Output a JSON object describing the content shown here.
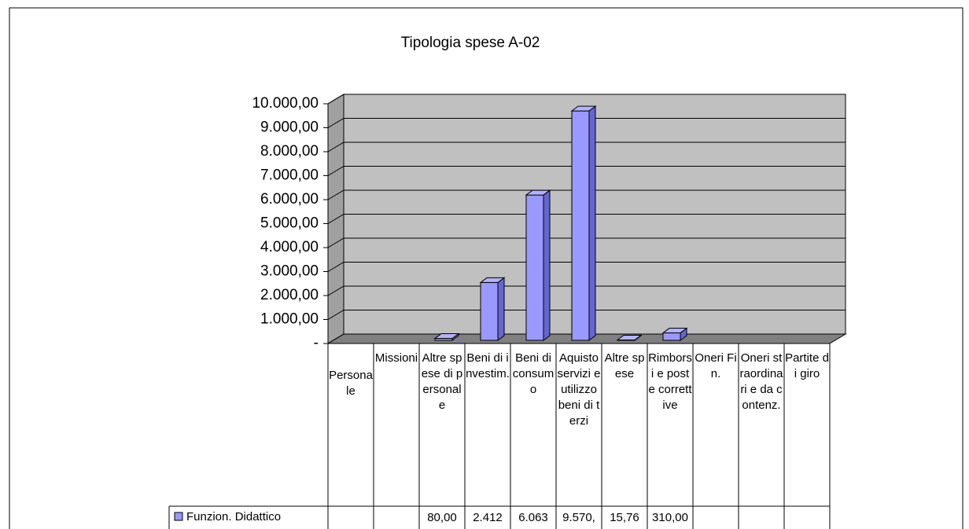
{
  "chart_data": {
    "type": "bar3d",
    "title": "Tipologia spese A-02",
    "categories": [
      "Personale",
      "Missioni",
      "Altre spese di personale",
      "Beni di investim.",
      "Beni di consumo",
      "Aquisto servizi e utilizzo beni di terzi",
      "Altre spese",
      "Rimborsi e poste correttive",
      "Oneri Fin.",
      "Oneri straordinari e da contenz.",
      "Partite di giro"
    ],
    "series": [
      {
        "name": "Funzion. Didattico",
        "color": "#9999ff",
        "values": [
          null,
          null,
          80,
          2412,
          6063,
          9570,
          15.76,
          310,
          null,
          null,
          null
        ],
        "value_labels": [
          null,
          null,
          "80,00",
          "2.412",
          "6.063",
          "9.570,",
          "15,76",
          "310,00",
          null,
          null,
          null
        ]
      }
    ],
    "ylim": [
      0,
      10000
    ],
    "yticks": [
      {
        "value": 0,
        "label": "-"
      },
      {
        "value": 1000,
        "label": "1.000,00"
      },
      {
        "value": 2000,
        "label": "2.000,00"
      },
      {
        "value": 3000,
        "label": "3.000,00"
      },
      {
        "value": 4000,
        "label": "4.000,00"
      },
      {
        "value": 5000,
        "label": "5.000,00"
      },
      {
        "value": 6000,
        "label": "6.000,00"
      },
      {
        "value": 7000,
        "label": "7.000,00"
      },
      {
        "value": 8000,
        "label": "8.000,00"
      },
      {
        "value": 9000,
        "label": "9.000,00"
      },
      {
        "value": 10000,
        "label": "10.000,00"
      }
    ],
    "grid": true
  }
}
